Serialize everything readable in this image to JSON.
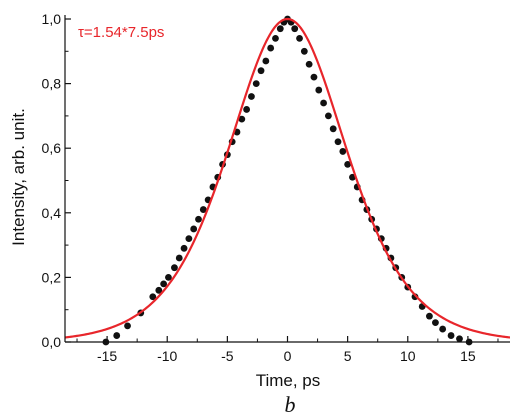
{
  "chart_data": {
    "type": "scatter",
    "xlabel": "Time, ps",
    "ylabel": "Intensity, arb. unit.",
    "xlim": [
      -18.5,
      18.5
    ],
    "ylim": [
      0,
      1.0
    ],
    "x_ticks": [
      -15,
      -10,
      -5,
      0,
      5,
      10,
      15
    ],
    "x_tick_labels": [
      "-15",
      "-10",
      "-5",
      "0",
      "5",
      "10",
      "15"
    ],
    "y_ticks": [
      0,
      0.2,
      0.4,
      0.6,
      0.8,
      1.0
    ],
    "y_tick_labels": [
      "0,0",
      "0,2",
      "0,4",
      "0,6",
      "0,8",
      "1,0"
    ],
    "grid": false,
    "annotation": "τ=1.54*7.5ps",
    "panel_label": "b",
    "colors": {
      "fit": "#e8262b",
      "points": "#111111",
      "annotation": "#e8262b"
    },
    "series": [
      {
        "type": "scatter",
        "points": [
          [
            -15.1,
            0.0
          ],
          [
            -14.2,
            0.02
          ],
          [
            -13.3,
            0.05
          ],
          [
            -12.2,
            0.09
          ],
          [
            -11.2,
            0.14
          ],
          [
            -10.7,
            0.16
          ],
          [
            -10.3,
            0.18
          ],
          [
            -9.9,
            0.2
          ],
          [
            -9.4,
            0.23
          ],
          [
            -9.0,
            0.26
          ],
          [
            -8.6,
            0.29
          ],
          [
            -8.2,
            0.32
          ],
          [
            -7.8,
            0.35
          ],
          [
            -7.4,
            0.38
          ],
          [
            -7.0,
            0.41
          ],
          [
            -6.6,
            0.44
          ],
          [
            -6.2,
            0.48
          ],
          [
            -5.8,
            0.51
          ],
          [
            -5.4,
            0.55
          ],
          [
            -5.0,
            0.58
          ],
          [
            -4.6,
            0.62
          ],
          [
            -4.2,
            0.65
          ],
          [
            -3.8,
            0.69
          ],
          [
            -3.4,
            0.72
          ],
          [
            -3.0,
            0.76
          ],
          [
            -2.6,
            0.8
          ],
          [
            -2.2,
            0.84
          ],
          [
            -1.8,
            0.87
          ],
          [
            -1.4,
            0.91
          ],
          [
            -1.0,
            0.94
          ],
          [
            -0.6,
            0.97
          ],
          [
            -0.3,
            0.99
          ],
          [
            0.0,
            1.0
          ],
          [
            0.3,
            0.99
          ],
          [
            0.6,
            0.97
          ],
          [
            1.0,
            0.94
          ],
          [
            1.4,
            0.9
          ],
          [
            1.8,
            0.86
          ],
          [
            2.2,
            0.82
          ],
          [
            2.6,
            0.78
          ],
          [
            3.0,
            0.74
          ],
          [
            3.4,
            0.7
          ],
          [
            3.8,
            0.66
          ],
          [
            4.2,
            0.62
          ],
          [
            4.6,
            0.59
          ],
          [
            5.0,
            0.55
          ],
          [
            5.4,
            0.51
          ],
          [
            5.8,
            0.48
          ],
          [
            6.2,
            0.44
          ],
          [
            6.6,
            0.41
          ],
          [
            7.0,
            0.38
          ],
          [
            7.4,
            0.35
          ],
          [
            7.8,
            0.32
          ],
          [
            8.2,
            0.29
          ],
          [
            8.6,
            0.26
          ],
          [
            9.0,
            0.23
          ],
          [
            9.5,
            0.2
          ],
          [
            10.0,
            0.17
          ],
          [
            10.6,
            0.14
          ],
          [
            11.2,
            0.11
          ],
          [
            11.8,
            0.08
          ],
          [
            12.3,
            0.06
          ],
          [
            12.9,
            0.04
          ],
          [
            13.6,
            0.02
          ],
          [
            14.3,
            0.01
          ],
          [
            15.1,
            0.0
          ]
        ]
      },
      {
        "type": "line",
        "function": "sech2",
        "amplitude": 1.0,
        "center": 0,
        "fwhm": 11.55
      }
    ]
  }
}
